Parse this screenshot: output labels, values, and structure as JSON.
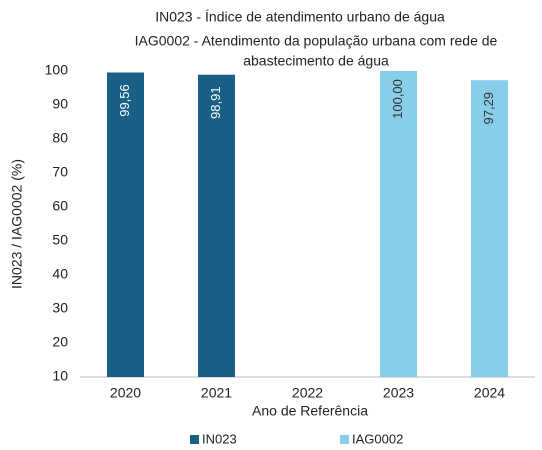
{
  "chart_data": {
    "type": "bar",
    "title": [
      "IN023 - Índice de atendimento urbano de água",
      "IAG0002 - Atendimento da população urbana com rede de",
      "abastecimento de água"
    ],
    "x_label": "Ano de Referência",
    "y_label": "IN023 / IAG0002 (%)",
    "categories": [
      "2020",
      "2021",
      "2022",
      "2023",
      "2024"
    ],
    "series": [
      {
        "name": "IN023",
        "color": "#1a5f86",
        "label_color": "#ffffff",
        "values": [
          99.56,
          98.91,
          null,
          null,
          null
        ],
        "value_labels": [
          "99,56",
          "98,91",
          null,
          null,
          null
        ]
      },
      {
        "name": "IAG0002",
        "color": "#87ceeb",
        "label_color": "#333333",
        "values": [
          null,
          null,
          null,
          100.0,
          97.29
        ],
        "value_labels": [
          null,
          null,
          null,
          "100,00",
          "97,29"
        ]
      }
    ],
    "ylim": [
      10,
      100
    ],
    "yticks": [
      10,
      20,
      30,
      40,
      50,
      60,
      70,
      80,
      90,
      100
    ],
    "legend": "bottom"
  }
}
